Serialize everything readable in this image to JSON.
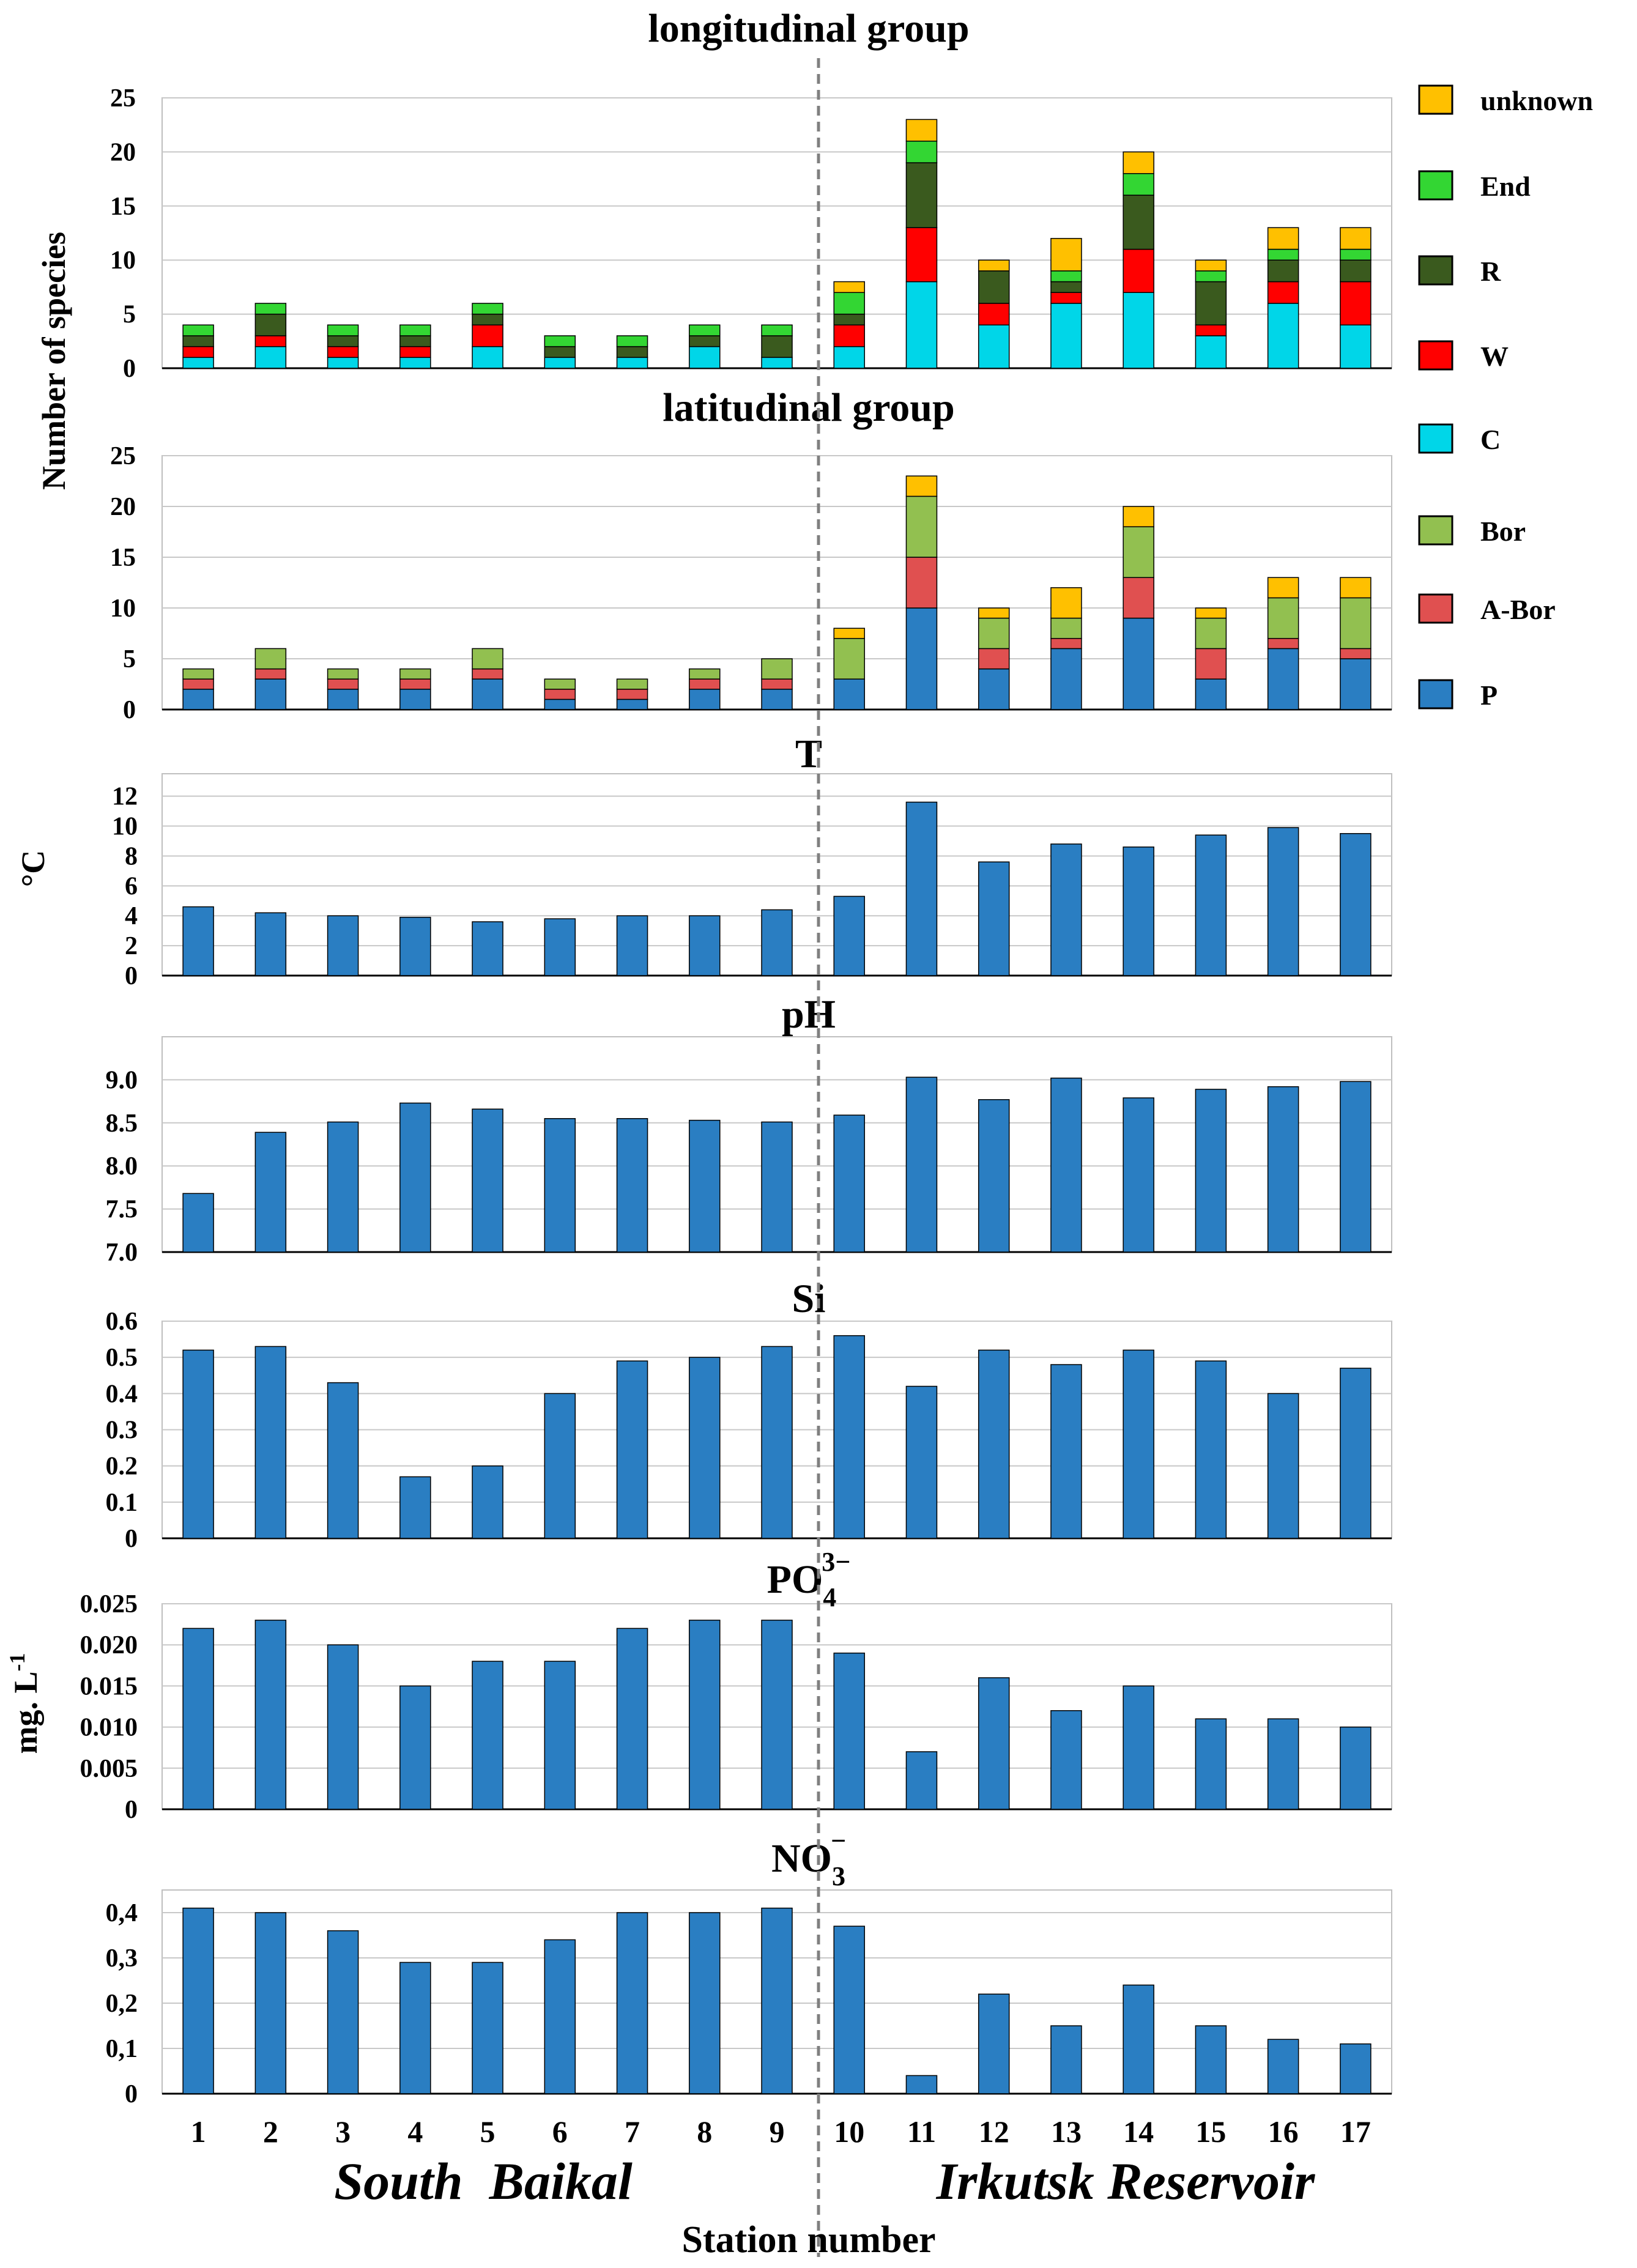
{
  "colors": {
    "unknown": "#FFC000",
    "End": "#33D633",
    "R": "#3A5A1E",
    "W": "#FF0000",
    "C": "#00D6E8",
    "Bor": "#92C050",
    "A-Bor": "#E05050",
    "P": "#2A7EC2",
    "bar_outline": "#000000",
    "grid": "#C8C8C8",
    "divider": "#808080"
  },
  "x_label": "Station number",
  "stations": [
    "1",
    "2",
    "3",
    "4",
    "5",
    "6",
    "7",
    "8",
    "9",
    "10",
    "11",
    "12",
    "13",
    "14",
    "15",
    "16",
    "17"
  ],
  "regions": {
    "left": "South  Baikal",
    "right": "Irkutsk Reservoir"
  },
  "shared_y_labels": {
    "species": "Number of species",
    "temperature": "°C",
    "concentration": "mg. L"
  },
  "concentration_unit_superscript": "-1",
  "legend": [
    {
      "key": "unknown",
      "label": "unknown",
      "color_key": "unknown"
    },
    {
      "key": "End",
      "label": "End",
      "color_key": "End"
    },
    {
      "key": "R",
      "label": "R",
      "color_key": "R"
    },
    {
      "key": "W",
      "label": "W",
      "color_key": "W"
    },
    {
      "key": "C",
      "label": "C",
      "color_key": "C"
    },
    {
      "key": "Bor",
      "label": "Bor",
      "color_key": "Bor"
    },
    {
      "key": "A-Bor",
      "label": "A-Bor",
      "color_key": "A-Bor"
    },
    {
      "key": "P",
      "label": "P",
      "color_key": "P"
    }
  ],
  "chart_data": [
    {
      "id": "longitudinal",
      "type": "bar",
      "stacked": true,
      "title": "longitudinal group",
      "ylim": [
        0,
        25
      ],
      "yticks": [
        "0",
        "5",
        "10",
        "15",
        "20",
        "25"
      ],
      "ytick_values": [
        0,
        5,
        10,
        15,
        20,
        25
      ],
      "categories": [
        "1",
        "2",
        "3",
        "4",
        "5",
        "6",
        "7",
        "8",
        "9",
        "10",
        "11",
        "12",
        "13",
        "14",
        "15",
        "16",
        "17"
      ],
      "series": [
        {
          "name": "C",
          "values": [
            1,
            2,
            1,
            1,
            2,
            1,
            1,
            2,
            1,
            2,
            8,
            4,
            6,
            7,
            3,
            6,
            4
          ]
        },
        {
          "name": "W",
          "values": [
            1,
            1,
            1,
            1,
            2,
            0,
            0,
            0,
            0,
            2,
            5,
            2,
            1,
            4,
            1,
            2,
            4
          ]
        },
        {
          "name": "R",
          "values": [
            1,
            2,
            1,
            1,
            1,
            1,
            1,
            1,
            2,
            1,
            6,
            3,
            1,
            5,
            4,
            2,
            2
          ]
        },
        {
          "name": "End",
          "values": [
            1,
            1,
            1,
            1,
            1,
            1,
            1,
            1,
            1,
            2,
            2,
            0,
            1,
            2,
            1,
            1,
            1
          ]
        },
        {
          "name": "unknown",
          "values": [
            0,
            0,
            0,
            0,
            0,
            0,
            0,
            0,
            0,
            1,
            2,
            1,
            3,
            2,
            1,
            2,
            2
          ]
        }
      ]
    },
    {
      "id": "latitudinal",
      "type": "bar",
      "stacked": true,
      "title": "latitudinal group",
      "ylim": [
        0,
        25
      ],
      "yticks": [
        "0",
        "5",
        "10",
        "15",
        "20",
        "25"
      ],
      "ytick_values": [
        0,
        5,
        10,
        15,
        20,
        25
      ],
      "categories": [
        "1",
        "2",
        "3",
        "4",
        "5",
        "6",
        "7",
        "8",
        "9",
        "10",
        "11",
        "12",
        "13",
        "14",
        "15",
        "16",
        "17"
      ],
      "series": [
        {
          "name": "P",
          "values": [
            2,
            3,
            2,
            2,
            3,
            1,
            1,
            2,
            2,
            3,
            10,
            4,
            6,
            9,
            3,
            6,
            5
          ]
        },
        {
          "name": "A-Bor",
          "values": [
            1,
            1,
            1,
            1,
            1,
            1,
            1,
            1,
            1,
            0,
            5,
            2,
            1,
            4,
            3,
            1,
            1
          ]
        },
        {
          "name": "Bor",
          "values": [
            1,
            2,
            1,
            1,
            2,
            1,
            1,
            1,
            2,
            4,
            6,
            3,
            2,
            5,
            3,
            4,
            5
          ]
        },
        {
          "name": "unknown",
          "values": [
            0,
            0,
            0,
            0,
            0,
            0,
            0,
            0,
            0,
            1,
            2,
            1,
            3,
            2,
            1,
            2,
            2
          ]
        }
      ]
    },
    {
      "id": "T",
      "type": "bar",
      "title": "T",
      "ylim": [
        0,
        13.5
      ],
      "yticks": [
        "0",
        "2",
        "4",
        "6",
        "8",
        "10",
        "12"
      ],
      "ytick_values": [
        0,
        2,
        4,
        6,
        8,
        10,
        12
      ],
      "categories": [
        "1",
        "2",
        "3",
        "4",
        "5",
        "6",
        "7",
        "8",
        "9",
        "10",
        "11",
        "12",
        "13",
        "14",
        "15",
        "16",
        "17"
      ],
      "values": [
        4.6,
        4.2,
        4.0,
        3.9,
        3.6,
        3.8,
        4.0,
        4.0,
        4.4,
        5.3,
        11.6,
        7.6,
        8.8,
        8.6,
        9.4,
        9.9,
        9.5
      ]
    },
    {
      "id": "pH",
      "type": "bar",
      "title": "pH",
      "ylim": [
        7.0,
        9.5
      ],
      "yticks": [
        "7.0",
        "7.5",
        "8.0",
        "8.5",
        "9.0"
      ],
      "ytick_values": [
        7.0,
        7.5,
        8.0,
        8.5,
        9.0
      ],
      "categories": [
        "1",
        "2",
        "3",
        "4",
        "5",
        "6",
        "7",
        "8",
        "9",
        "10",
        "11",
        "12",
        "13",
        "14",
        "15",
        "16",
        "17"
      ],
      "values": [
        7.68,
        8.39,
        8.51,
        8.73,
        8.66,
        8.55,
        8.55,
        8.53,
        8.51,
        8.59,
        9.03,
        8.77,
        9.02,
        8.79,
        8.89,
        8.92,
        8.98
      ]
    },
    {
      "id": "Si",
      "type": "bar",
      "title": "Si",
      "ylim": [
        0,
        0.6
      ],
      "yticks": [
        "0",
        "0.1",
        "0.2",
        "0.3",
        "0.4",
        "0.5",
        "0.6"
      ],
      "ytick_values": [
        0,
        0.1,
        0.2,
        0.3,
        0.4,
        0.5,
        0.6
      ],
      "categories": [
        "1",
        "2",
        "3",
        "4",
        "5",
        "6",
        "7",
        "8",
        "9",
        "10",
        "11",
        "12",
        "13",
        "14",
        "15",
        "16",
        "17"
      ],
      "values": [
        0.52,
        0.53,
        0.43,
        0.17,
        0.2,
        0.4,
        0.49,
        0.5,
        0.53,
        0.56,
        0.42,
        0.52,
        0.48,
        0.52,
        0.49,
        0.4,
        0.47
      ]
    },
    {
      "id": "PO4",
      "type": "bar",
      "title": "PO",
      "title_sub": "4",
      "title_sup": "3−",
      "ylim": [
        0,
        0.025
      ],
      "yticks": [
        "0",
        "0.005",
        "0.010",
        "0.015",
        "0.020",
        "0.025"
      ],
      "ytick_values": [
        0,
        0.005,
        0.01,
        0.015,
        0.02,
        0.025
      ],
      "categories": [
        "1",
        "2",
        "3",
        "4",
        "5",
        "6",
        "7",
        "8",
        "9",
        "10",
        "11",
        "12",
        "13",
        "14",
        "15",
        "16",
        "17"
      ],
      "values": [
        0.022,
        0.023,
        0.02,
        0.015,
        0.018,
        0.018,
        0.022,
        0.023,
        0.023,
        0.019,
        0.007,
        0.016,
        0.012,
        0.015,
        0.011,
        0.011,
        0.01
      ]
    },
    {
      "id": "NO3",
      "type": "bar",
      "title": "NO",
      "title_sub": "3",
      "title_sup": "−",
      "ylim": [
        0,
        0.45
      ],
      "yticks": [
        "0",
        "0,1",
        "0,2",
        "0,3",
        "0,4"
      ],
      "ytick_values": [
        0,
        0.1,
        0.2,
        0.3,
        0.4
      ],
      "categories": [
        "1",
        "2",
        "3",
        "4",
        "5",
        "6",
        "7",
        "8",
        "9",
        "10",
        "11",
        "12",
        "13",
        "14",
        "15",
        "16",
        "17"
      ],
      "values": [
        0.41,
        0.4,
        0.36,
        0.29,
        0.29,
        0.34,
        0.4,
        0.4,
        0.41,
        0.37,
        0.04,
        0.22,
        0.15,
        0.24,
        0.15,
        0.12,
        0.11
      ]
    }
  ]
}
